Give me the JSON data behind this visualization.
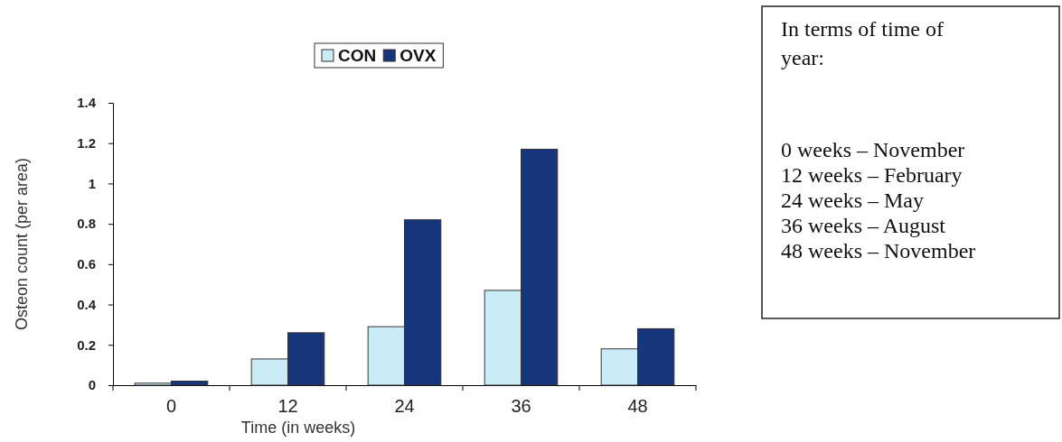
{
  "chart_data": {
    "type": "bar",
    "xlabel": "Time (in weeks)",
    "ylabel": "Osteon count (per area)",
    "categories": [
      "0",
      "12",
      "24",
      "36",
      "48"
    ],
    "series": [
      {
        "name": "CON",
        "color": "#c9ecf7",
        "values": [
          0.01,
          0.13,
          0.29,
          0.47,
          0.18
        ]
      },
      {
        "name": "OVX",
        "color": "#16357a",
        "values": [
          0.02,
          0.26,
          0.82,
          1.17,
          0.28
        ]
      }
    ],
    "ylim": [
      0,
      1.4
    ],
    "yticks": [
      0,
      {
        "value": 0.2,
        "label": "0.2"
      },
      {
        "value": 0.4,
        "label": "0.4"
      },
      {
        "value": 0.6,
        "label": "0.6"
      },
      {
        "value": 0.8,
        "label": "0.8"
      },
      1,
      {
        "value": 1.2,
        "label": "1.2"
      },
      {
        "value": 1.4,
        "label": "1.4"
      }
    ],
    "grid": false,
    "legend": "top",
    "annotations": [
      "In terms of time of year:",
      "0 weeks – November",
      "12 weeks – February",
      "24 weeks – May",
      "36 weeks – August",
      "48 weeks – November"
    ]
  }
}
